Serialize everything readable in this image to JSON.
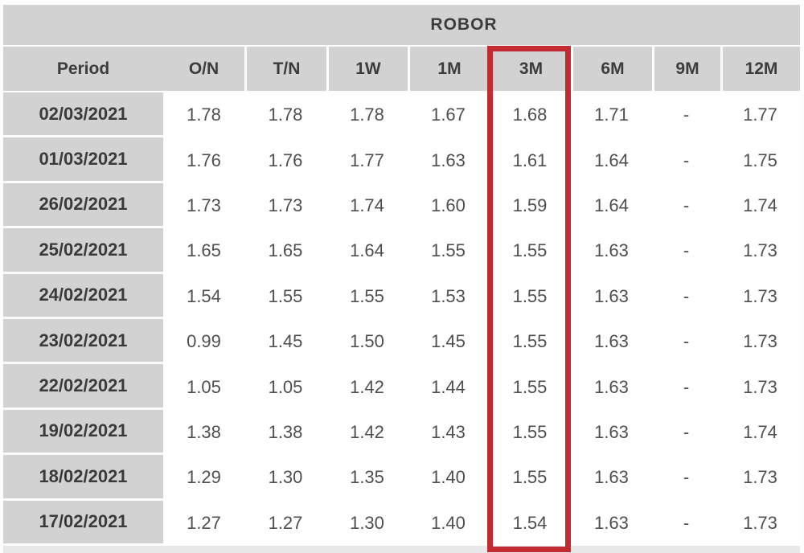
{
  "table": {
    "title": "ROBOR",
    "highlighted_column": "3M",
    "columns": [
      "Period",
      "O/N",
      "T/N",
      "1W",
      "1M",
      "3M",
      "6M",
      "9M",
      "12M"
    ],
    "rows": [
      {
        "period": "02/03/2021",
        "values": [
          "1.78",
          "1.78",
          "1.78",
          "1.67",
          "1.68",
          "1.71",
          "-",
          "1.77"
        ]
      },
      {
        "period": "01/03/2021",
        "values": [
          "1.76",
          "1.76",
          "1.77",
          "1.63",
          "1.61",
          "1.64",
          "-",
          "1.75"
        ]
      },
      {
        "period": "26/02/2021",
        "values": [
          "1.73",
          "1.73",
          "1.74",
          "1.60",
          "1.59",
          "1.64",
          "-",
          "1.74"
        ]
      },
      {
        "period": "25/02/2021",
        "values": [
          "1.65",
          "1.65",
          "1.64",
          "1.55",
          "1.55",
          "1.63",
          "-",
          "1.73"
        ]
      },
      {
        "period": "24/02/2021",
        "values": [
          "1.54",
          "1.55",
          "1.55",
          "1.53",
          "1.55",
          "1.63",
          "-",
          "1.73"
        ]
      },
      {
        "period": "23/02/2021",
        "values": [
          "0.99",
          "1.45",
          "1.50",
          "1.45",
          "1.55",
          "1.63",
          "-",
          "1.73"
        ]
      },
      {
        "period": "22/02/2021",
        "values": [
          "1.05",
          "1.05",
          "1.42",
          "1.44",
          "1.55",
          "1.63",
          "-",
          "1.73"
        ]
      },
      {
        "period": "19/02/2021",
        "values": [
          "1.38",
          "1.38",
          "1.42",
          "1.43",
          "1.55",
          "1.63",
          "-",
          "1.74"
        ]
      },
      {
        "period": "18/02/2021",
        "values": [
          "1.29",
          "1.30",
          "1.35",
          "1.40",
          "1.55",
          "1.63",
          "-",
          "1.73"
        ]
      },
      {
        "period": "17/02/2021",
        "values": [
          "1.27",
          "1.27",
          "1.30",
          "1.40",
          "1.54",
          "1.63",
          "-",
          "1.73"
        ]
      }
    ]
  },
  "colors": {
    "cell_gray": "#d2d2d2",
    "highlight_red": "#c32b33",
    "header_text": "#3c3c3c",
    "value_text": "#4f4f4f",
    "bottom_strip": "#e8e8e8",
    "background": "#fdfdfd"
  },
  "chart_data": {
    "type": "table",
    "title": "ROBOR",
    "columns": [
      "Period",
      "O/N",
      "T/N",
      "1W",
      "1M",
      "3M",
      "6M",
      "9M",
      "12M"
    ],
    "rows": [
      [
        "02/03/2021",
        1.78,
        1.78,
        1.78,
        1.67,
        1.68,
        1.71,
        null,
        1.77
      ],
      [
        "01/03/2021",
        1.76,
        1.76,
        1.77,
        1.63,
        1.61,
        1.64,
        null,
        1.75
      ],
      [
        "26/02/2021",
        1.73,
        1.73,
        1.74,
        1.6,
        1.59,
        1.64,
        null,
        1.74
      ],
      [
        "25/02/2021",
        1.65,
        1.65,
        1.64,
        1.55,
        1.55,
        1.63,
        null,
        1.73
      ],
      [
        "24/02/2021",
        1.54,
        1.55,
        1.55,
        1.53,
        1.55,
        1.63,
        null,
        1.73
      ],
      [
        "23/02/2021",
        0.99,
        1.45,
        1.5,
        1.45,
        1.55,
        1.63,
        null,
        1.73
      ],
      [
        "22/02/2021",
        1.05,
        1.05,
        1.42,
        1.44,
        1.55,
        1.63,
        null,
        1.73
      ],
      [
        "19/02/2021",
        1.38,
        1.38,
        1.42,
        1.43,
        1.55,
        1.63,
        null,
        1.74
      ],
      [
        "18/02/2021",
        1.29,
        1.3,
        1.35,
        1.4,
        1.55,
        1.63,
        null,
        1.73
      ],
      [
        "17/02/2021",
        1.27,
        1.27,
        1.3,
        1.4,
        1.54,
        1.63,
        null,
        1.73
      ]
    ],
    "annotations": [
      "red rectangle highlights the 3M column"
    ],
    "layout_hints": {
      "missing_value_marker": "-",
      "highlighted_column": "3M"
    }
  }
}
